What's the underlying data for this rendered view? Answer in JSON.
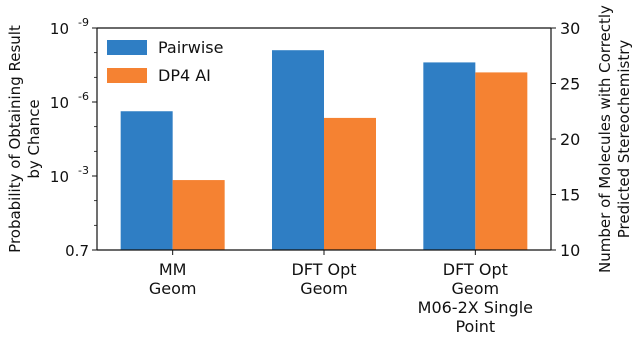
{
  "chart_data": {
    "type": "bar",
    "categories": [
      [
        "MM",
        "Geom"
      ],
      [
        "DFT Opt",
        "Geom"
      ],
      [
        "DFT Opt",
        "Geom",
        "M06-2X Single",
        "Point"
      ]
    ],
    "series": [
      {
        "name": "Pairwise",
        "color": "#2f7ec4",
        "axis": "right",
        "values": [
          22.5,
          28.0,
          26.9
        ]
      },
      {
        "name": "DP4 AI",
        "color": "#f58232",
        "axis": "right",
        "values": [
          16.3,
          21.9,
          26.0
        ]
      }
    ],
    "ylabel_left": [
      "Probability of Obtaining Result",
      "by Chance"
    ],
    "ylabel_right": [
      "Number of Molecules with Correctly",
      "Predicted Stereochemistry"
    ],
    "y_left": {
      "scale": "log",
      "ticks": [
        "10^-9",
        "10^-6",
        "10^-3",
        "0.7"
      ]
    },
    "y_right": {
      "scale": "linear",
      "ylim": [
        10,
        30
      ],
      "ticks": [
        10,
        15,
        20,
        25,
        30
      ]
    },
    "legend": {
      "placement": "top-left"
    },
    "grid": false
  }
}
